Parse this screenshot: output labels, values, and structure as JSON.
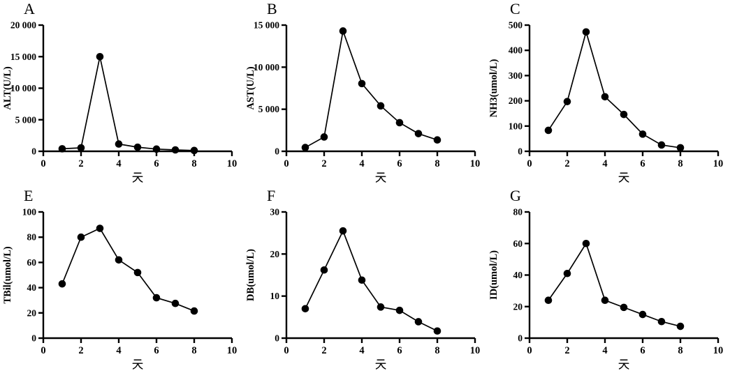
{
  "figure": {
    "background": "#ffffff",
    "axis_color": "#000000",
    "marker_color": "#000000",
    "line_color": "#000000"
  },
  "chart_data": [
    {
      "panel_label": "A",
      "type": "line",
      "title": "",
      "xlabel": "天",
      "ylabel": "ALT(U/L)",
      "x": [
        1,
        2,
        3,
        4,
        5,
        6,
        7,
        8
      ],
      "values": [
        400,
        550,
        15000,
        1150,
        650,
        350,
        220,
        130
      ],
      "xlim": [
        0,
        10
      ],
      "ylim": [
        0,
        20000
      ],
      "xticks": [
        0,
        2,
        4,
        6,
        8,
        10
      ],
      "xtick_labels": [
        "0",
        "2",
        "4",
        "6",
        "8",
        "10"
      ],
      "yticks": [
        0,
        5000,
        10000,
        15000,
        20000
      ],
      "ytick_labels": [
        "0",
        "5 000",
        "10 000",
        "15 000",
        "20 000"
      ],
      "grid": false,
      "legend": null
    },
    {
      "panel_label": "B",
      "type": "line",
      "title": "",
      "xlabel": "天",
      "ylabel": "AST(U/L)",
      "x": [
        1,
        2,
        3,
        4,
        5,
        6,
        7,
        8
      ],
      "values": [
        450,
        1700,
        14300,
        8050,
        5400,
        3400,
        2100,
        1350
      ],
      "xlim": [
        0,
        10
      ],
      "ylim": [
        0,
        15000
      ],
      "xticks": [
        0,
        2,
        4,
        6,
        8,
        10
      ],
      "xtick_labels": [
        "0",
        "2",
        "4",
        "6",
        "8",
        "10"
      ],
      "yticks": [
        0,
        5000,
        10000,
        15000
      ],
      "ytick_labels": [
        "0",
        "5 000",
        "10 000",
        "15 000"
      ],
      "grid": false,
      "legend": null
    },
    {
      "panel_label": "C",
      "type": "line",
      "title": "",
      "xlabel": "天",
      "ylabel": "NH3(umol/L)",
      "x": [
        1,
        2,
        3,
        4,
        5,
        6,
        7,
        8
      ],
      "values": [
        83,
        197,
        473,
        216,
        146,
        68,
        25,
        14
      ],
      "xlim": [
        0,
        10
      ],
      "ylim": [
        0,
        500
      ],
      "xticks": [
        0,
        2,
        4,
        6,
        8,
        10
      ],
      "xtick_labels": [
        "0",
        "2",
        "4",
        "6",
        "8",
        "10"
      ],
      "yticks": [
        0,
        100,
        200,
        300,
        400,
        500
      ],
      "ytick_labels": [
        "0",
        "100",
        "200",
        "300",
        "400",
        "500"
      ],
      "grid": false,
      "legend": null
    },
    {
      "panel_label": "E",
      "type": "line",
      "title": "",
      "xlabel": "天",
      "ylabel": "TBil(umol/L)",
      "x": [
        1,
        2,
        3,
        4,
        5,
        6,
        7,
        8
      ],
      "values": [
        43,
        80,
        87,
        62,
        52,
        32,
        27.5,
        21.5
      ],
      "xlim": [
        0,
        10
      ],
      "ylim": [
        0,
        100
      ],
      "xticks": [
        0,
        2,
        4,
        6,
        8,
        10
      ],
      "xtick_labels": [
        "0",
        "2",
        "4",
        "6",
        "8",
        "10"
      ],
      "yticks": [
        0,
        20,
        40,
        60,
        80,
        100
      ],
      "ytick_labels": [
        "0",
        "20",
        "40",
        "60",
        "80",
        "100"
      ],
      "grid": false,
      "legend": null
    },
    {
      "panel_label": "F",
      "type": "line",
      "title": "",
      "xlabel": "天",
      "ylabel": "DB(umol/L)",
      "x": [
        1,
        2,
        3,
        4,
        5,
        6,
        7,
        8
      ],
      "values": [
        7,
        16.2,
        25.5,
        13.8,
        7.4,
        6.6,
        3.9,
        1.7
      ],
      "xlim": [
        0,
        10
      ],
      "ylim": [
        0,
        30
      ],
      "xticks": [
        0,
        2,
        4,
        6,
        8,
        10
      ],
      "xtick_labels": [
        "0",
        "2",
        "4",
        "6",
        "8",
        "10"
      ],
      "yticks": [
        0,
        10,
        20,
        30
      ],
      "ytick_labels": [
        "0",
        "10",
        "20",
        "30"
      ],
      "grid": false,
      "legend": null
    },
    {
      "panel_label": "G",
      "type": "line",
      "title": "",
      "xlabel": "天",
      "ylabel": "ID(umol/L)",
      "x": [
        1,
        2,
        3,
        4,
        5,
        6,
        7,
        8
      ],
      "values": [
        24,
        41,
        60,
        24,
        19.5,
        15,
        10.5,
        7.5
      ],
      "xlim": [
        0,
        10
      ],
      "ylim": [
        0,
        80
      ],
      "xticks": [
        0,
        2,
        4,
        6,
        8,
        10
      ],
      "xtick_labels": [
        "0",
        "2",
        "4",
        "6",
        "8",
        "10"
      ],
      "yticks": [
        0,
        20,
        40,
        60,
        80
      ],
      "ytick_labels": [
        "0",
        "20",
        "40",
        "60",
        "80"
      ],
      "grid": false,
      "legend": null
    }
  ]
}
